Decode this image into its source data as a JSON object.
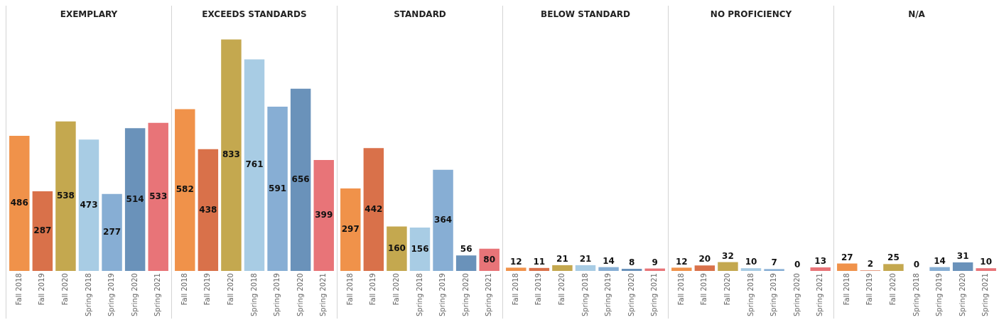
{
  "chart_data": [
    {
      "type": "bar",
      "title": "EXEMPLARY",
      "categories": [
        "Fall 2018",
        "Fall 2019",
        "Fall 2020",
        "Spring 2018",
        "Spring 2019",
        "Spring 2020",
        "Spring 2021"
      ],
      "values": [
        486,
        287,
        538,
        473,
        277,
        514,
        533
      ],
      "colors": [
        "#f0924a",
        "#d9714a",
        "#c4a84f",
        "#a8cce4",
        "#87aed4",
        "#6a92ba",
        "#e87478"
      ],
      "data_labels": true,
      "tick_labels": "x"
    },
    {
      "type": "bar",
      "title": "EXCEEDS STANDARDS",
      "categories": [
        "Fall 2018",
        "Fall 2019",
        "Fall 2020",
        "Spring 2018",
        "Spring 2019",
        "Spring 2020",
        "Spring 2021"
      ],
      "values": [
        582,
        438,
        833,
        761,
        591,
        656,
        399
      ],
      "colors": [
        "#f0924a",
        "#d9714a",
        "#c4a84f",
        "#a8cce4",
        "#87aed4",
        "#6a92ba",
        "#e87478"
      ],
      "data_labels": true,
      "tick_labels": "x"
    },
    {
      "type": "bar",
      "title": "STANDARD",
      "categories": [
        "Fall 2018",
        "Fall 2019",
        "Fall 2020",
        "Spring 2018",
        "Spring 2019",
        "Spring 2020",
        "Spring 2021"
      ],
      "values": [
        297,
        442,
        160,
        156,
        364,
        56,
        80
      ],
      "colors": [
        "#f0924a",
        "#d9714a",
        "#c4a84f",
        "#a8cce4",
        "#87aed4",
        "#6a92ba",
        "#e87478"
      ],
      "data_labels": true,
      "tick_labels": "x"
    },
    {
      "type": "bar",
      "title": "BELOW STANDARD",
      "categories": [
        "Fall 2018",
        "Fall 2019",
        "Fall 2020",
        "Spring 2018",
        "Spring 2019",
        "Spring 2020",
        "Spring 2021"
      ],
      "values": [
        12,
        11,
        21,
        21,
        14,
        8,
        9
      ],
      "colors": [
        "#f0924a",
        "#d9714a",
        "#c4a84f",
        "#a8cce4",
        "#87aed4",
        "#6a92ba",
        "#e87478"
      ],
      "data_labels": true,
      "tick_labels": "x"
    },
    {
      "type": "bar",
      "title": "NO PROFICIENCY",
      "categories": [
        "Fall 2018",
        "Fall 2019",
        "Fall 2020",
        "Spring 2018",
        "Spring 2019",
        "Spring 2020",
        "Spring 2021"
      ],
      "values": [
        12,
        20,
        32,
        10,
        7,
        0,
        13
      ],
      "colors": [
        "#f0924a",
        "#d9714a",
        "#c4a84f",
        "#a8cce4",
        "#87aed4",
        "#6a92ba",
        "#e87478"
      ],
      "data_labels": true,
      "tick_labels": "x"
    },
    {
      "type": "bar",
      "title": "N/A",
      "categories": [
        "Fall 2018",
        "Fall 2019",
        "Fall 2020",
        "Spring 2018",
        "Spring 2019",
        "Spring 2020",
        "Spring 2021"
      ],
      "values": [
        27,
        2,
        25,
        0,
        14,
        31,
        10
      ],
      "colors": [
        "#f0924a",
        "#d9714a",
        "#c4a84f",
        "#a8cce4",
        "#87aed4",
        "#6a92ba",
        "#e87478"
      ],
      "data_labels": true,
      "tick_labels": "x"
    }
  ]
}
